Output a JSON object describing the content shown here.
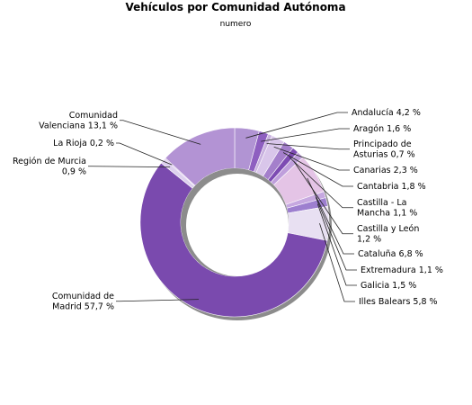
{
  "chart_data": {
    "type": "pie",
    "title": "Vehículos por Comunidad Autónoma",
    "subtitle": "numero",
    "slices": [
      {
        "name": "Andalucía",
        "label": [
          "Andalucía 4,2 %"
        ],
        "value": 4.2,
        "color": "#b194d3",
        "side": "right"
      },
      {
        "name": "Aragón",
        "label": [
          "Aragón 1,6 %"
        ],
        "value": 1.6,
        "color": "#8e5fc0",
        "side": "right"
      },
      {
        "name": "Principado de Asturias",
        "label": [
          "Principado de",
          "Asturias 0,7 %"
        ],
        "value": 0.7,
        "color": "#c9b2df",
        "side": "right"
      },
      {
        "name": "Canarias",
        "label": [
          "Canarias 2,3 %"
        ],
        "value": 2.3,
        "color": "#d9c6ea",
        "side": "right"
      },
      {
        "name": "Cantabria",
        "label": [
          "Cantabria 1,8 %"
        ],
        "value": 1.8,
        "color": "#a47fcb",
        "side": "right"
      },
      {
        "name": "Castilla - La Mancha",
        "label": [
          "Castilla - La",
          "Mancha 1,1 %"
        ],
        "value": 1.1,
        "color": "#7d4bb3",
        "side": "right"
      },
      {
        "name": "Castilla y León",
        "label": [
          "Castilla y León",
          "1,2 %"
        ],
        "value": 1.2,
        "color": "#bf9fdc",
        "side": "right"
      },
      {
        "name": "Cataluña",
        "label": [
          "Cataluña 6,8 %"
        ],
        "value": 6.8,
        "color": "#e4c4e6",
        "side": "right"
      },
      {
        "name": "Extremadura",
        "label": [
          "Extremadura 1,1 %"
        ],
        "value": 1.1,
        "color": "#c6a8e0",
        "side": "right"
      },
      {
        "name": "Galicia",
        "label": [
          "Galicia 1,5 %"
        ],
        "value": 1.5,
        "color": "#9d7fcf",
        "side": "right"
      },
      {
        "name": "Illes Balears",
        "label": [
          "Illes Balears 5,8 %"
        ],
        "value": 5.8,
        "color": "#e8e0f2",
        "side": "right"
      },
      {
        "name": "Comunidad de Madrid",
        "label": [
          "Comunidad de",
          "Madrid 57,7 %"
        ],
        "value": 57.7,
        "color": "#7a4aae",
        "side": "left"
      },
      {
        "name": "Región de Murcia",
        "label": [
          "Región de Murcia",
          "0,9 %"
        ],
        "value": 0.9,
        "color": "#ddd0ee",
        "side": "left"
      },
      {
        "name": "La Rioja",
        "label": [
          "La Rioja 0,2 %"
        ],
        "value": 0.2,
        "color": "#caa9e3",
        "side": "left"
      },
      {
        "name": "Comunidad Valenciana",
        "label": [
          "Comunidad",
          "Valenciana 13,1 %"
        ],
        "value": 13.1,
        "color": "#b393d4",
        "side": "left"
      }
    ]
  }
}
